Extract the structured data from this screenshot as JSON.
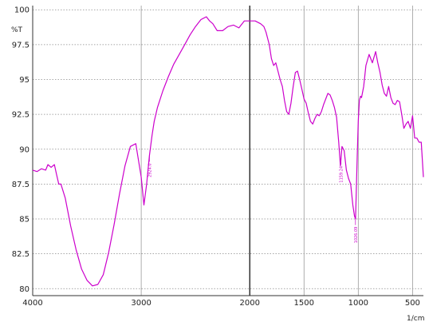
{
  "chart_data": {
    "type": "line",
    "title": "",
    "xlabel": "1/cm",
    "ylabel": "%T",
    "xlim": [
      4000,
      400
    ],
    "ylim": [
      79.5,
      100.3
    ],
    "x_reversed": true,
    "grid": true,
    "x_ticks": [
      4000,
      3000,
      2000,
      1500,
      1000,
      500
    ],
    "x_tick_labels": [
      "4000",
      "3000",
      "2000",
      "1500",
      "1000",
      "500"
    ],
    "y_ticks": [
      80,
      82.5,
      85,
      87.5,
      90,
      92.5,
      95,
      97.5,
      100
    ],
    "y_tick_labels": [
      "80",
      "82.5",
      "85",
      "87.5",
      "90",
      "92.5",
      "95",
      "97.5",
      "100"
    ],
    "line_color": "#cc00cc",
    "series": [
      {
        "x": [
          4000,
          3960,
          3920,
          3880,
          3860,
          3830,
          3800,
          3780,
          3760,
          3740,
          3700,
          3650,
          3600,
          3550,
          3500,
          3450,
          3400,
          3350,
          3300,
          3250,
          3200,
          3150,
          3100,
          3050,
          3000,
          2975,
          2950,
          2925,
          2900,
          2880,
          2850,
          2800,
          2750,
          2700,
          2650,
          2600,
          2550,
          2500,
          2450,
          2400,
          2370,
          2340,
          2300,
          2250,
          2200,
          2150,
          2100,
          2050,
          2000,
          1950,
          1900,
          1870,
          1850,
          1820,
          1800,
          1780,
          1760,
          1740,
          1720,
          1700,
          1680,
          1660,
          1640,
          1620,
          1600,
          1580,
          1560,
          1540,
          1520,
          1500,
          1480,
          1460,
          1440,
          1420,
          1400,
          1380,
          1360,
          1340,
          1320,
          1300,
          1280,
          1260,
          1240,
          1220,
          1200,
          1180,
          1165,
          1150,
          1130,
          1110,
          1090,
          1070,
          1050,
          1035,
          1025,
          1020,
          1010,
          1000,
          990,
          980,
          970,
          950,
          930,
          900,
          870,
          840,
          820,
          800,
          780,
          760,
          740,
          720,
          700,
          680,
          660,
          640,
          620,
          600,
          580,
          560,
          540,
          520,
          500,
          480,
          460,
          440,
          420,
          400
        ],
        "y": [
          88.5,
          88.4,
          88.6,
          88.5,
          88.9,
          88.7,
          88.9,
          88.2,
          87.5,
          87.5,
          86.5,
          84.5,
          82.8,
          81.4,
          80.6,
          80.2,
          80.3,
          81.0,
          82.6,
          84.6,
          86.8,
          88.8,
          90.2,
          90.4,
          88.0,
          86.0,
          87.5,
          89.5,
          91.0,
          92.0,
          93.0,
          94.2,
          95.2,
          96.1,
          96.8,
          97.5,
          98.2,
          98.8,
          99.3,
          99.5,
          99.2,
          99.0,
          98.5,
          98.5,
          98.8,
          98.9,
          98.7,
          99.2,
          99.2,
          99.2,
          99.0,
          98.8,
          98.4,
          97.5,
          96.5,
          96.0,
          96.2,
          95.6,
          95.0,
          94.5,
          93.5,
          92.7,
          92.5,
          93.3,
          94.5,
          95.5,
          95.6,
          95.0,
          94.3,
          93.6,
          93.3,
          92.6,
          92.0,
          91.8,
          92.2,
          92.5,
          92.4,
          92.7,
          93.2,
          93.6,
          94.0,
          93.9,
          93.5,
          93.0,
          92.3,
          90.5,
          88.8,
          90.2,
          89.9,
          88.5,
          87.9,
          87.5,
          86.0,
          85.2,
          85.0,
          86.5,
          89.5,
          92.0,
          93.5,
          93.8,
          93.7,
          94.5,
          96.0,
          96.8,
          96.2,
          97.0,
          96.2,
          95.5,
          94.6,
          94.0,
          93.8,
          94.5,
          93.7,
          93.3,
          93.2,
          93.5,
          93.4,
          92.5,
          91.5,
          91.8,
          92.0,
          91.5,
          92.4,
          90.8,
          90.8,
          90.5,
          90.5,
          88.0
        ]
      }
    ],
    "annotations": [
      {
        "x": 2924,
        "label": "2924.0"
      },
      {
        "x": 1159,
        "label": "1159.24"
      },
      {
        "x": 1026,
        "label": "1026.09"
      }
    ]
  }
}
